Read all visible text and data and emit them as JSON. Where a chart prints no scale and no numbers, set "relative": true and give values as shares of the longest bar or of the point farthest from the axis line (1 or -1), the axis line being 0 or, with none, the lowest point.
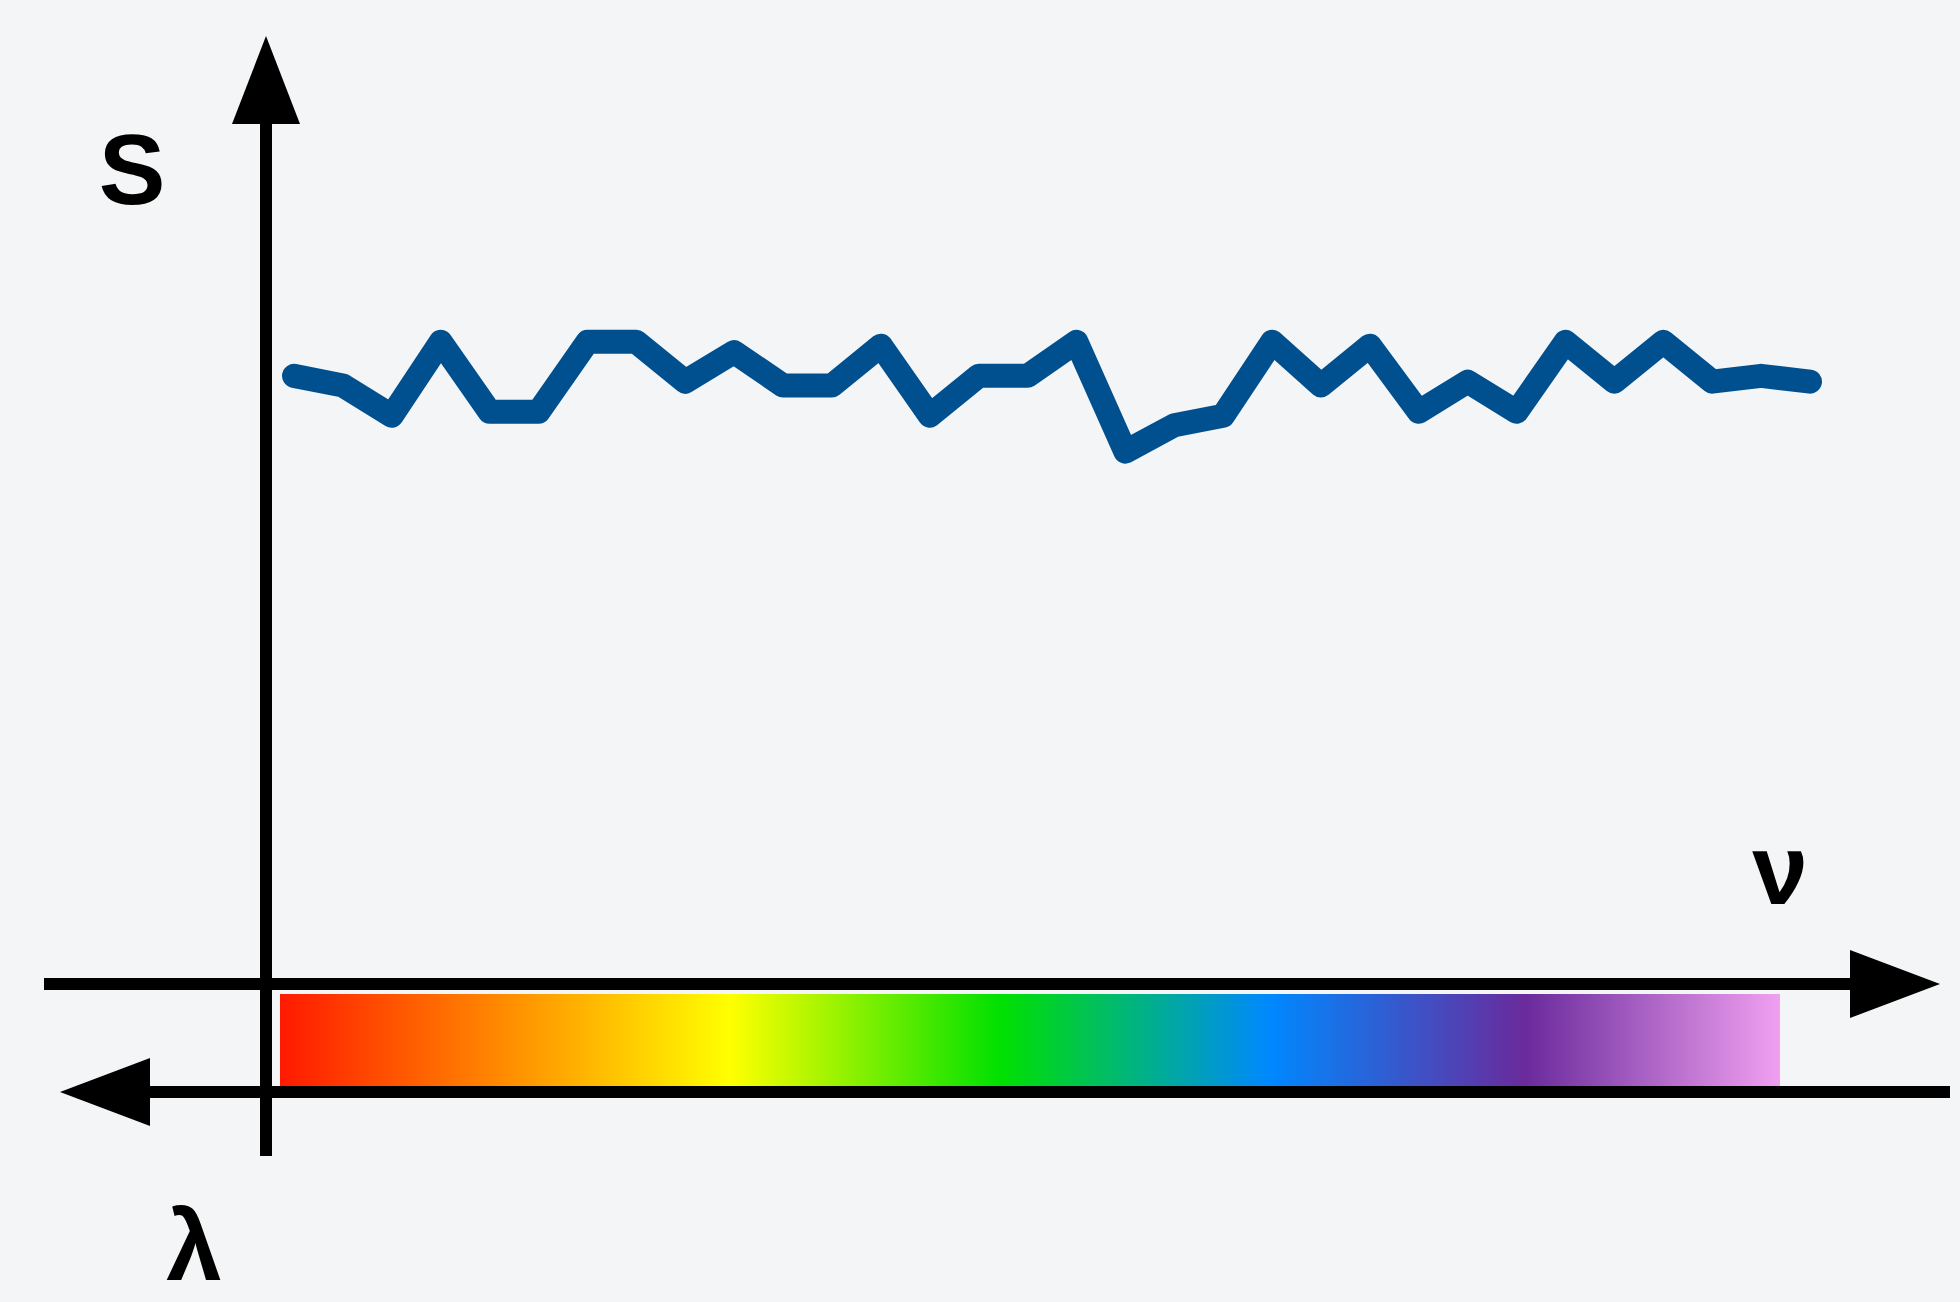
{
  "chart_data": {
    "type": "line",
    "xlabel": "ν",
    "ylabel": "S",
    "x2label": "λ",
    "relative": true,
    "categories": [
      null,
      null,
      null,
      null,
      null,
      null,
      null,
      null,
      null,
      null,
      null,
      null,
      null,
      null,
      null,
      null,
      null,
      null,
      null,
      null,
      null,
      null,
      null,
      null,
      null,
      null,
      null,
      null,
      null,
      null,
      null,
      null
    ],
    "series": [
      {
        "color": "#00508f",
        "values": [
          0.947,
          0.932,
          0.885,
          1,
          0.891,
          0.891,
          1,
          1,
          0.938,
          0.984,
          0.932,
          0.932,
          0.994,
          0.885,
          0.947,
          0.947,
          1,
          0.829,
          0.87,
          0.885,
          1,
          0.932,
          0.994,
          0.891,
          0.938,
          0.891,
          1,
          0.938,
          1,
          0.938,
          0.947,
          0.938
        ]
      }
    ],
    "grid": false,
    "legend": false,
    "marker": "none",
    "line_style": "solid"
  }
}
